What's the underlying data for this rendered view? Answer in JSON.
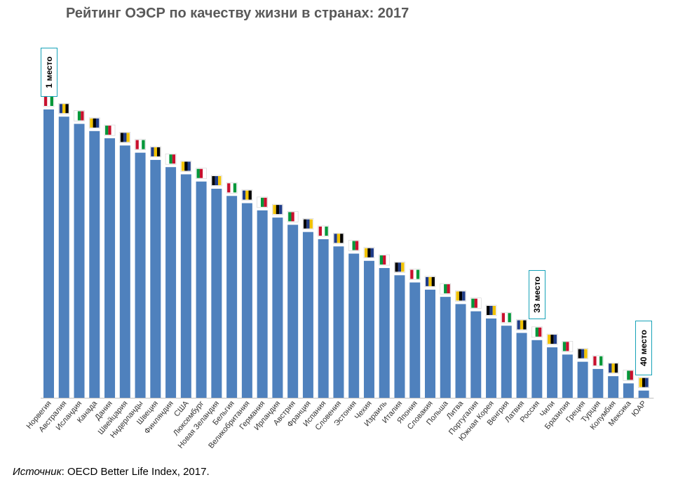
{
  "chart_data": {
    "type": "bar",
    "title": "Рейтинг ОЭСР по качеству жизни в странах: 2017",
    "categories": [
      "Норвегия",
      "Австралия",
      "Исландия",
      "Канада",
      "Дания",
      "Швейцария",
      "Нидерланды",
      "Швеция",
      "Финляндия",
      "США",
      "Люксембург",
      "Новая Зеландия",
      "Бельгия",
      "Великобритания",
      "Германия",
      "Ирландия",
      "Австрия",
      "Франция",
      "Испания",
      "Словения",
      "Эстония",
      "Чехия",
      "Израиль",
      "Италия",
      "Япония",
      "Словакия",
      "Польша",
      "Литва",
      "Португалия",
      "Южная Корея",
      "Венгрия",
      "Латвия",
      "Россия",
      "Чили",
      "Бразилия",
      "Греция",
      "Турция",
      "Колумбия",
      "Мексика",
      "ЮАР"
    ],
    "values": [
      40,
      39,
      38,
      37,
      36,
      35,
      34,
      33,
      32,
      31,
      30,
      29,
      28,
      27,
      26,
      25,
      24,
      23,
      22,
      21,
      20,
      19,
      18,
      17,
      16,
      15,
      14,
      13,
      12,
      11,
      10,
      9,
      8,
      7,
      6,
      5,
      4,
      3,
      2,
      1
    ],
    "ylim": [
      0,
      40
    ],
    "xlabel": "",
    "ylabel": "",
    "grid": false,
    "legend": "none",
    "bar_color": "#4f81bd",
    "flags": [
      "norway-flag",
      "australia-flag",
      "iceland-flag",
      "canada-flag",
      "denmark-flag",
      "switzerland-flag",
      "netherlands-flag",
      "sweden-flag",
      "finland-flag",
      "usa-flag",
      "luxembourg-flag",
      "new-zealand-flag",
      "belgium-flag",
      "uk-flag",
      "germany-flag",
      "ireland-flag",
      "austria-flag",
      "france-flag",
      "spain-flag",
      "slovenia-flag",
      "estonia-flag",
      "czech-flag",
      "israel-flag",
      "italy-flag",
      "japan-flag",
      "slovakia-flag",
      "poland-flag",
      "lithuania-flag",
      "portugal-flag",
      "south-korea-flag",
      "hungary-flag",
      "latvia-flag",
      "russia-flag",
      "chile-flag",
      "brazil-flag",
      "greece-flag",
      "turkey-flag",
      "colombia-flag",
      "mexico-flag",
      "south-africa-flag"
    ],
    "annotations": [
      {
        "label": "1 место",
        "category": "Норвегия"
      },
      {
        "label": "33 место",
        "category": "Россия"
      },
      {
        "label": "40 место",
        "category": "ЮАР"
      }
    ]
  },
  "source": {
    "prefix": "Источник",
    "text": ": OECD Better Life Index, 2017."
  }
}
